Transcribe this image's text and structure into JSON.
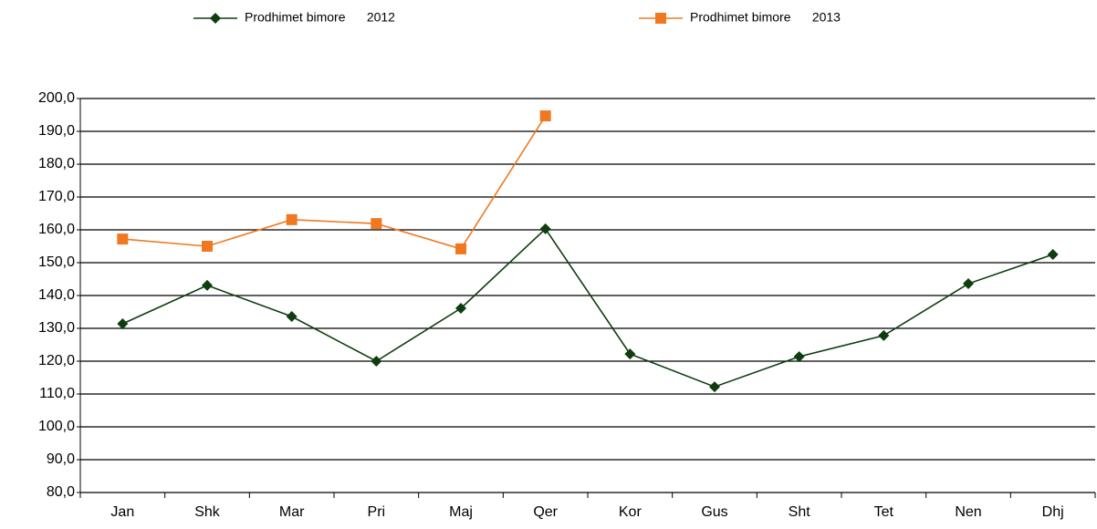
{
  "chart_data": {
    "type": "line",
    "categories": [
      "Jan",
      "Shk",
      "Mar",
      "Pri",
      "Maj",
      "Qer",
      "Kor",
      "Gus",
      "Sht",
      "Tet",
      "Nen",
      "Dhj"
    ],
    "series": [
      {
        "name": "Prodhimet bimore      2012",
        "color": "#0f3d0f",
        "marker": "diamond",
        "values": [
          131.4,
          143.1,
          133.6,
          120.0,
          136.1,
          160.3,
          122.2,
          112.2,
          121.4,
          127.8,
          143.6,
          152.5
        ]
      },
      {
        "name": "Prodhimet bimore      2013",
        "color": "#f07820",
        "marker": "square",
        "values": [
          157.2,
          155.0,
          163.1,
          161.9,
          154.2,
          194.7,
          null,
          null,
          null,
          null,
          null,
          null
        ]
      }
    ],
    "ylim": [
      80,
      200
    ],
    "yticks": [
      {
        "value": 80,
        "label": "80,0"
      },
      {
        "value": 90,
        "label": "90,0"
      },
      {
        "value": 100,
        "label": "100,0"
      },
      {
        "value": 110,
        "label": "110,0"
      },
      {
        "value": 120,
        "label": "120,0"
      },
      {
        "value": 130,
        "label": "130,0"
      },
      {
        "value": 140,
        "label": "140,0"
      },
      {
        "value": 150,
        "label": "150,0"
      },
      {
        "value": 160,
        "label": "160,0"
      },
      {
        "value": 170,
        "label": "170,0"
      },
      {
        "value": 180,
        "label": "180,0"
      },
      {
        "value": 190,
        "label": "190,0"
      },
      {
        "value": 200,
        "label": "200,0"
      }
    ],
    "grid": true,
    "legend": "top"
  }
}
